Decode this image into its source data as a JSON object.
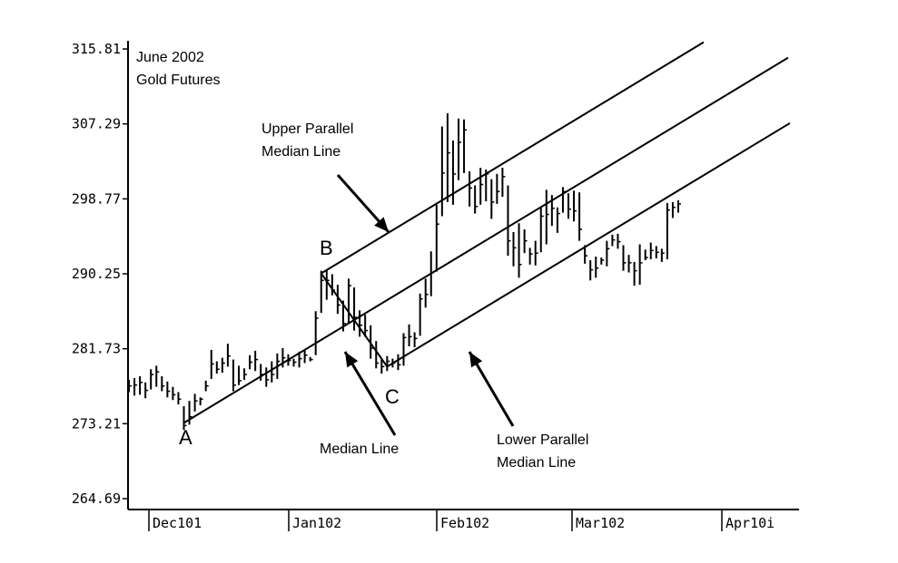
{
  "chart_data": {
    "type": "bar",
    "subtype": "ohlc",
    "title_lines": [
      "June 2002",
      "Gold Futures"
    ],
    "y_ticks": [
      "315.81",
      "307.29",
      "298.77",
      "290.25",
      "281.73",
      "273.21",
      "264.69"
    ],
    "ylim": [
      264.69,
      315.81
    ],
    "x_ticks": [
      "Dec101",
      "Jan102",
      "Feb102",
      "Mar102",
      "Apr10i"
    ],
    "grid": false,
    "colors": {
      "ink": "#000000",
      "background": "#ffffff"
    },
    "ohlc": [
      [
        278.2,
        276.8,
        277.5
      ],
      [
        278.4,
        276.4,
        277.6
      ],
      [
        278.6,
        276.5,
        277.9
      ],
      [
        277.9,
        276.1,
        277.0
      ],
      [
        279.4,
        277.1,
        278.8
      ],
      [
        279.8,
        277.4,
        279.1
      ],
      [
        278.6,
        276.9,
        277.5
      ],
      [
        278.0,
        276.2,
        276.9
      ],
      [
        277.4,
        275.9,
        276.5
      ],
      [
        276.8,
        275.4,
        276.0
      ],
      [
        275.2,
        272.5,
        273.0
      ],
      [
        275.8,
        273.1,
        274.0
      ],
      [
        276.6,
        274.6,
        275.8
      ],
      [
        276.2,
        275.3,
        276.0
      ],
      [
        278.1,
        276.9,
        277.5
      ],
      [
        281.6,
        278.3,
        280.0
      ],
      [
        280.3,
        278.9,
        279.4
      ],
      [
        280.7,
        279.0,
        280.1
      ],
      [
        282.3,
        279.7,
        280.9
      ],
      [
        280.5,
        276.9,
        277.6
      ],
      [
        279.8,
        277.6,
        278.1
      ],
      [
        279.5,
        278.2,
        278.8
      ],
      [
        281.0,
        279.4,
        280.2
      ],
      [
        281.5,
        279.2,
        280.5
      ],
      [
        280.0,
        278.1,
        278.8
      ],
      [
        279.6,
        277.4,
        278.2
      ],
      [
        280.3,
        277.9,
        278.8
      ],
      [
        281.2,
        278.3,
        280.3
      ],
      [
        281.8,
        279.6,
        280.7
      ],
      [
        281.1,
        279.8,
        280.4
      ],
      [
        280.6,
        279.7,
        280.2
      ],
      [
        281.4,
        279.6,
        280.6
      ],
      [
        281.6,
        280.1,
        281.0
      ],
      [
        280.8,
        280.3,
        280.5
      ],
      [
        286.0,
        281.0,
        285.2
      ],
      [
        290.6,
        285.8,
        289.5
      ],
      [
        290.7,
        287.3,
        289.5
      ],
      [
        290.2,
        287.8,
        288.4
      ],
      [
        289.0,
        285.7,
        286.7
      ],
      [
        287.2,
        283.7,
        284.6
      ],
      [
        289.7,
        284.6,
        288.9
      ],
      [
        288.7,
        283.8,
        285.3
      ],
      [
        286.1,
        283.1,
        284.4
      ],
      [
        285.6,
        283.1,
        283.8
      ],
      [
        284.4,
        280.6,
        281.8
      ],
      [
        282.6,
        279.5,
        280.1
      ],
      [
        280.5,
        278.9,
        279.7
      ],
      [
        280.9,
        279.2,
        280.3
      ],
      [
        280.6,
        279.6,
        280.1
      ],
      [
        281.1,
        279.3,
        279.9
      ],
      [
        283.5,
        279.8,
        283.0
      ],
      [
        284.5,
        282.0,
        283.1
      ],
      [
        283.6,
        281.9,
        282.9
      ],
      [
        288.0,
        283.2,
        287.4
      ],
      [
        289.7,
        286.4,
        287.9
      ],
      [
        292.8,
        287.7,
        290.4
      ],
      [
        298.1,
        290.5,
        295.9
      ],
      [
        307.0,
        296.8,
        301.7
      ],
      [
        308.5,
        298.4,
        304.0
      ],
      [
        305.4,
        298.1,
        301.6
      ],
      [
        307.9,
        300.9,
        305.2
      ],
      [
        307.8,
        301.7,
        306.6
      ],
      [
        301.9,
        297.9,
        300.0
      ],
      [
        300.3,
        297.1,
        297.9
      ],
      [
        302.3,
        298.1,
        300.4
      ],
      [
        302.1,
        298.5,
        301.6
      ],
      [
        301.0,
        296.5,
        298.4
      ],
      [
        301.6,
        298.2,
        299.6
      ],
      [
        302.3,
        299.0,
        301.3
      ],
      [
        300.3,
        292.3,
        294.0
      ],
      [
        295.0,
        291.1,
        293.2
      ],
      [
        296.0,
        289.8,
        291.3
      ],
      [
        295.3,
        292.6,
        294.0
      ],
      [
        293.2,
        291.3,
        292.5
      ],
      [
        294.0,
        291.2,
        292.6
      ],
      [
        297.9,
        292.7,
        296.8
      ],
      [
        299.8,
        293.6,
        297.0
      ],
      [
        299.2,
        295.7,
        297.7
      ],
      [
        297.8,
        294.9,
        297.1
      ],
      [
        300.1,
        297.2,
        299.6
      ],
      [
        299.4,
        296.5,
        297.6
      ],
      [
        299.7,
        296.2,
        297.4
      ],
      [
        299.5,
        294.0,
        295.3
      ],
      [
        293.5,
        291.4,
        292.3
      ],
      [
        291.8,
        289.5,
        290.7
      ],
      [
        292.2,
        289.8,
        290.9
      ],
      [
        292.1,
        291.3,
        291.8
      ],
      [
        294.0,
        291.1,
        293.1
      ],
      [
        294.7,
        293.4,
        294.1
      ],
      [
        294.8,
        293.1,
        293.9
      ],
      [
        293.5,
        290.6,
        291.5
      ],
      [
        292.4,
        290.4,
        291.5
      ],
      [
        291.6,
        288.9,
        290.6
      ],
      [
        293.6,
        289.0,
        291.5
      ],
      [
        293.0,
        291.8,
        292.1
      ],
      [
        293.8,
        291.9,
        292.9
      ],
      [
        293.4,
        292.0,
        292.7
      ],
      [
        293.1,
        291.6,
        292.6
      ],
      [
        298.3,
        291.9,
        297.5
      ],
      [
        298.4,
        296.6,
        297.8
      ],
      [
        298.6,
        297.2,
        298.2
      ]
    ],
    "reference_lines": [
      {
        "name": "Median Line",
        "from": "A",
        "through": "BC-midpoint"
      },
      {
        "name": "Upper Parallel Median Line",
        "from": "B",
        "parallel_to": "Median Line"
      },
      {
        "name": "Lower Parallel Median Line",
        "from": "C",
        "parallel_to": "Median Line"
      }
    ],
    "pivots": [
      {
        "label": "A",
        "bar": 10,
        "value": 273.3
      },
      {
        "label": "B",
        "bar": 35,
        "value": 290.3
      },
      {
        "label": "C",
        "bar": 47,
        "value": 279.7
      }
    ],
    "annotations": [
      {
        "lines": [
          "Upper Parallel",
          "Median Line"
        ]
      },
      {
        "lines": [
          "Median Line"
        ]
      },
      {
        "lines": [
          "Lower Parallel",
          "Median Line"
        ]
      }
    ]
  }
}
